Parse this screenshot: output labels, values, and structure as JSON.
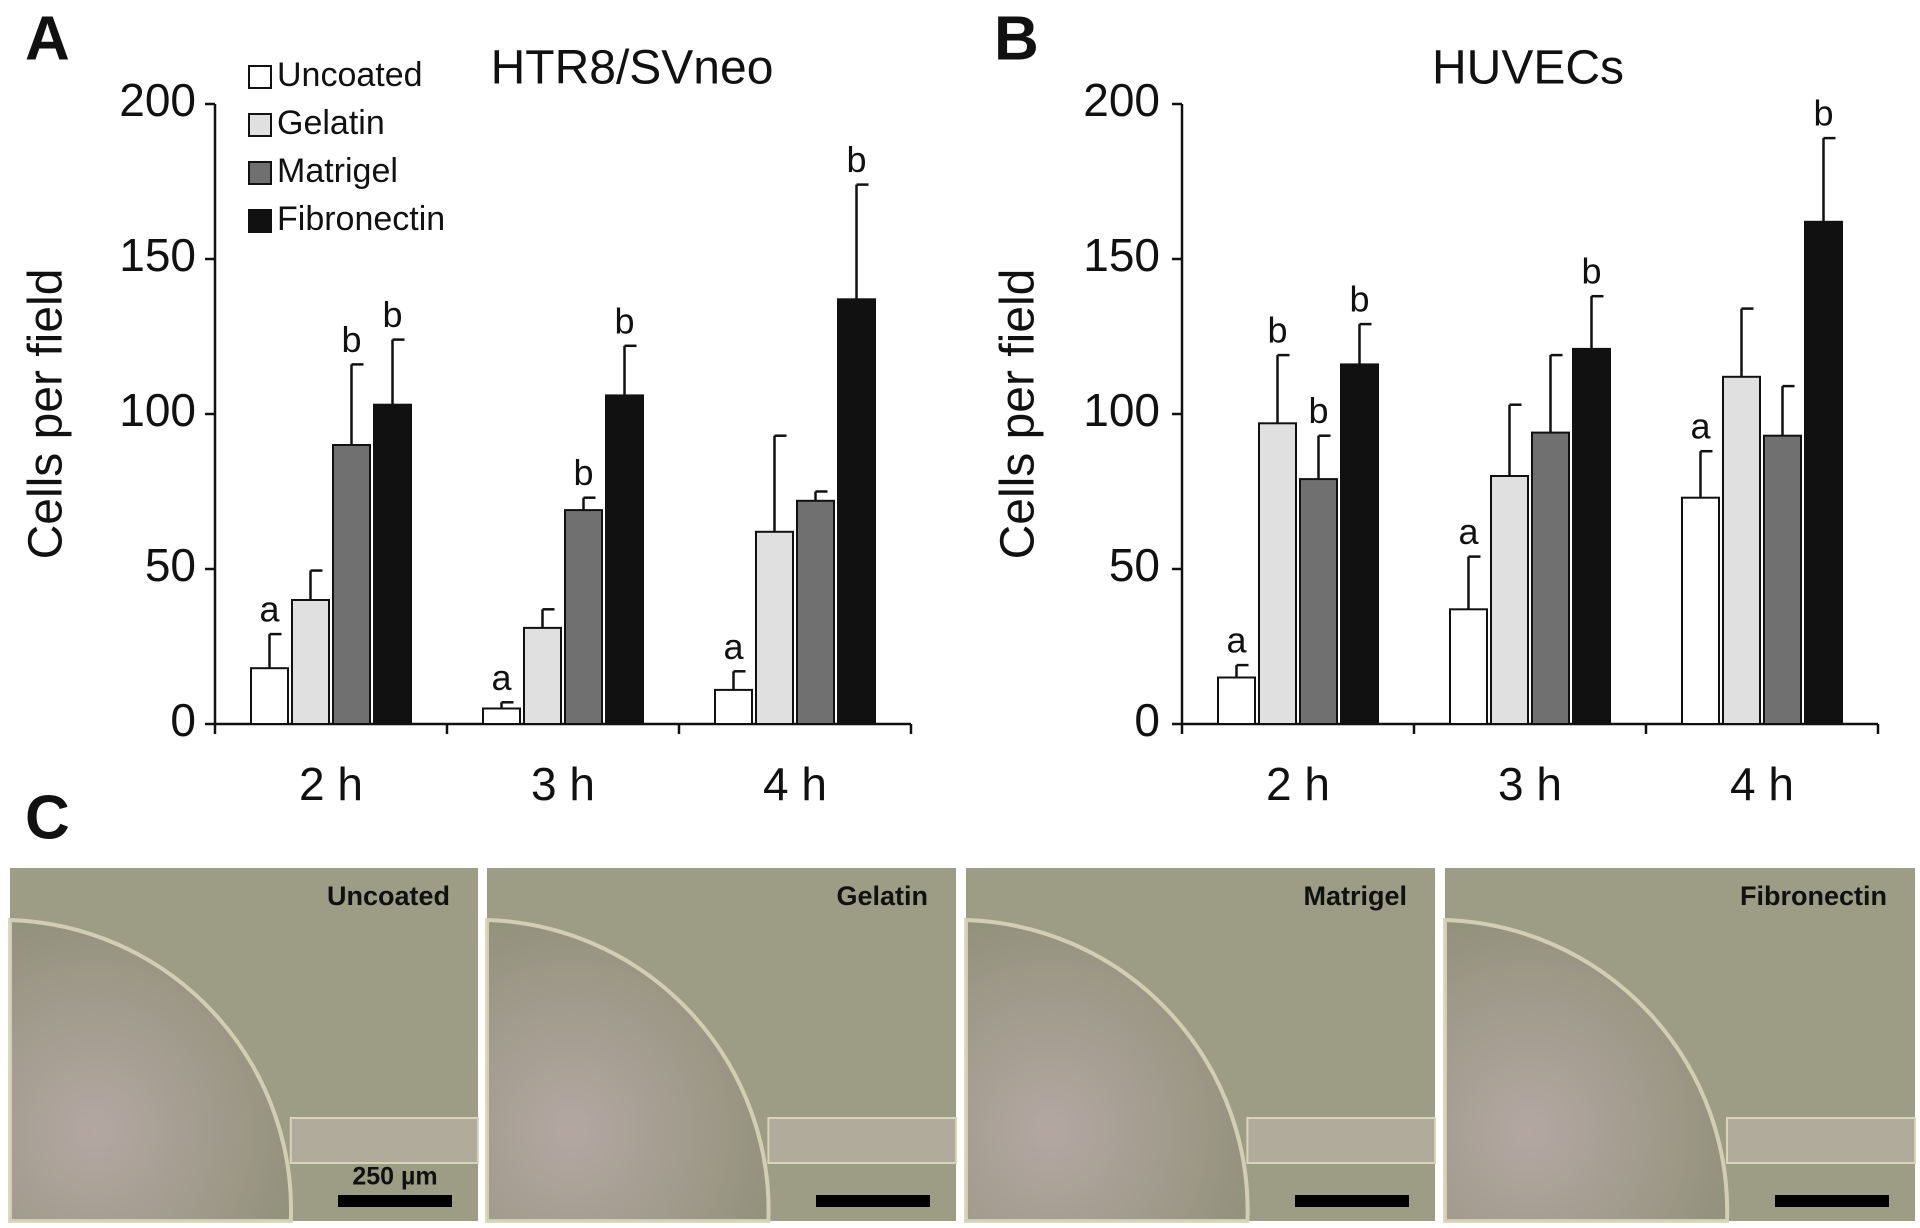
{
  "panel_labels": [
    "A",
    "B",
    "C"
  ],
  "chart_data": [
    {
      "type": "bar",
      "title": "HTR8/SVneo",
      "ylabel": "Cells per field",
      "categories": [
        "2 h",
        "3 h",
        "4 h"
      ],
      "ylim": [
        0,
        200
      ],
      "yticks": [
        0,
        50,
        100,
        150,
        200
      ],
      "grid": false,
      "legend": "upper left",
      "series": [
        {
          "name": "Uncoated",
          "color": "#ffffff",
          "values": [
            18,
            5,
            11
          ],
          "errors": [
            11,
            2,
            6
          ],
          "letters": [
            "a",
            "a",
            "a"
          ]
        },
        {
          "name": "Gelatin",
          "color": "#e0e0e0",
          "values": [
            40,
            31,
            62
          ],
          "errors": [
            9.5,
            6,
            31
          ],
          "letters": [
            null,
            null,
            null
          ]
        },
        {
          "name": "Matrigel",
          "color": "#707070",
          "values": [
            90,
            69,
            72
          ],
          "errors": [
            26,
            4,
            3
          ],
          "letters": [
            "b",
            "b",
            null
          ]
        },
        {
          "name": "Fibronectin",
          "color": "#111111",
          "values": [
            103,
            106,
            137
          ],
          "errors": [
            21,
            16,
            37
          ],
          "letters": [
            "b",
            "b",
            "b"
          ]
        }
      ]
    },
    {
      "type": "bar",
      "title": "HUVECs",
      "ylabel": "Cells per field",
      "categories": [
        "2 h",
        "3 h",
        "4 h"
      ],
      "ylim": [
        0,
        200
      ],
      "yticks": [
        0,
        50,
        100,
        150,
        200
      ],
      "grid": false,
      "series": [
        {
          "color": "#ffffff",
          "values": [
            15,
            37,
            73
          ],
          "errors": [
            4,
            17,
            15
          ],
          "letters": [
            "a",
            "a",
            "a"
          ]
        },
        {
          "color": "#e0e0e0",
          "values": [
            97,
            80,
            112
          ],
          "errors": [
            22,
            23,
            22
          ],
          "letters": [
            "b",
            null,
            null
          ]
        },
        {
          "color": "#707070",
          "values": [
            79,
            94,
            93
          ],
          "errors": [
            14,
            25,
            16
          ],
          "letters": [
            "b",
            null,
            null
          ]
        },
        {
          "color": "#111111",
          "values": [
            116,
            121,
            162
          ],
          "errors": [
            13,
            17,
            27
          ],
          "letters": [
            "b",
            "b",
            "b"
          ]
        }
      ]
    }
  ],
  "micrographs": {
    "labels": [
      "Uncoated",
      "Gelatin",
      "Matrigel",
      "Fibronectin"
    ],
    "scale_bar": "250 µm"
  }
}
